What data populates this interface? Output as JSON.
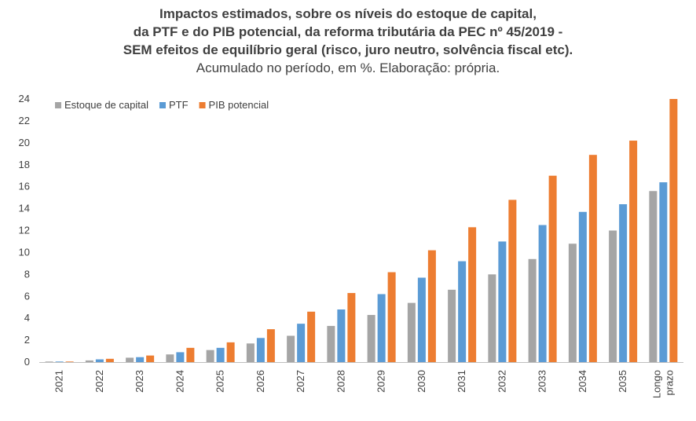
{
  "chart_data": {
    "type": "bar",
    "title_lines": [
      "Impactos estimados, sobre os níveis do estoque de capital,",
      "da PTF e do PIB potencial, da reforma tributária da PEC nº 45/2019 -",
      "SEM efeitos de equilíbrio geral (risco, juro neutro, solvência fiscal etc)."
    ],
    "subtitle": "Acumulado no período, em %. Elaboração: própria.",
    "categories": [
      "2021",
      "2022",
      "2023",
      "2024",
      "2025",
      "2026",
      "2027",
      "2028",
      "2029",
      "2030",
      "2031",
      "2032",
      "2033",
      "2034",
      "2035",
      "Longo prazo"
    ],
    "series": [
      {
        "name": "Estoque de capital",
        "color": "#a5a5a5",
        "values": [
          0.05,
          0.15,
          0.4,
          0.7,
          1.1,
          1.7,
          2.4,
          3.3,
          4.3,
          5.4,
          6.6,
          8.0,
          9.4,
          10.8,
          12.0,
          15.6
        ]
      },
      {
        "name": "PTF",
        "color": "#5b9bd5",
        "values": [
          0.05,
          0.25,
          0.45,
          0.9,
          1.3,
          2.2,
          3.5,
          4.8,
          6.2,
          7.7,
          9.2,
          11.0,
          12.5,
          13.7,
          14.4,
          16.4
        ]
      },
      {
        "name": "PIB potencial",
        "color": "#ed7d31",
        "values": [
          0.05,
          0.3,
          0.6,
          1.3,
          1.8,
          3.0,
          4.6,
          6.3,
          8.2,
          10.2,
          12.3,
          14.8,
          17.0,
          18.9,
          20.2,
          24.0
        ]
      }
    ],
    "y_ticks": [
      0,
      2,
      4,
      6,
      8,
      10,
      12,
      14,
      16,
      18,
      20,
      22,
      24
    ],
    "ylim": [
      0,
      24
    ],
    "grid": false,
    "legend_position": "top-left",
    "xlabel": "",
    "ylabel": ""
  }
}
